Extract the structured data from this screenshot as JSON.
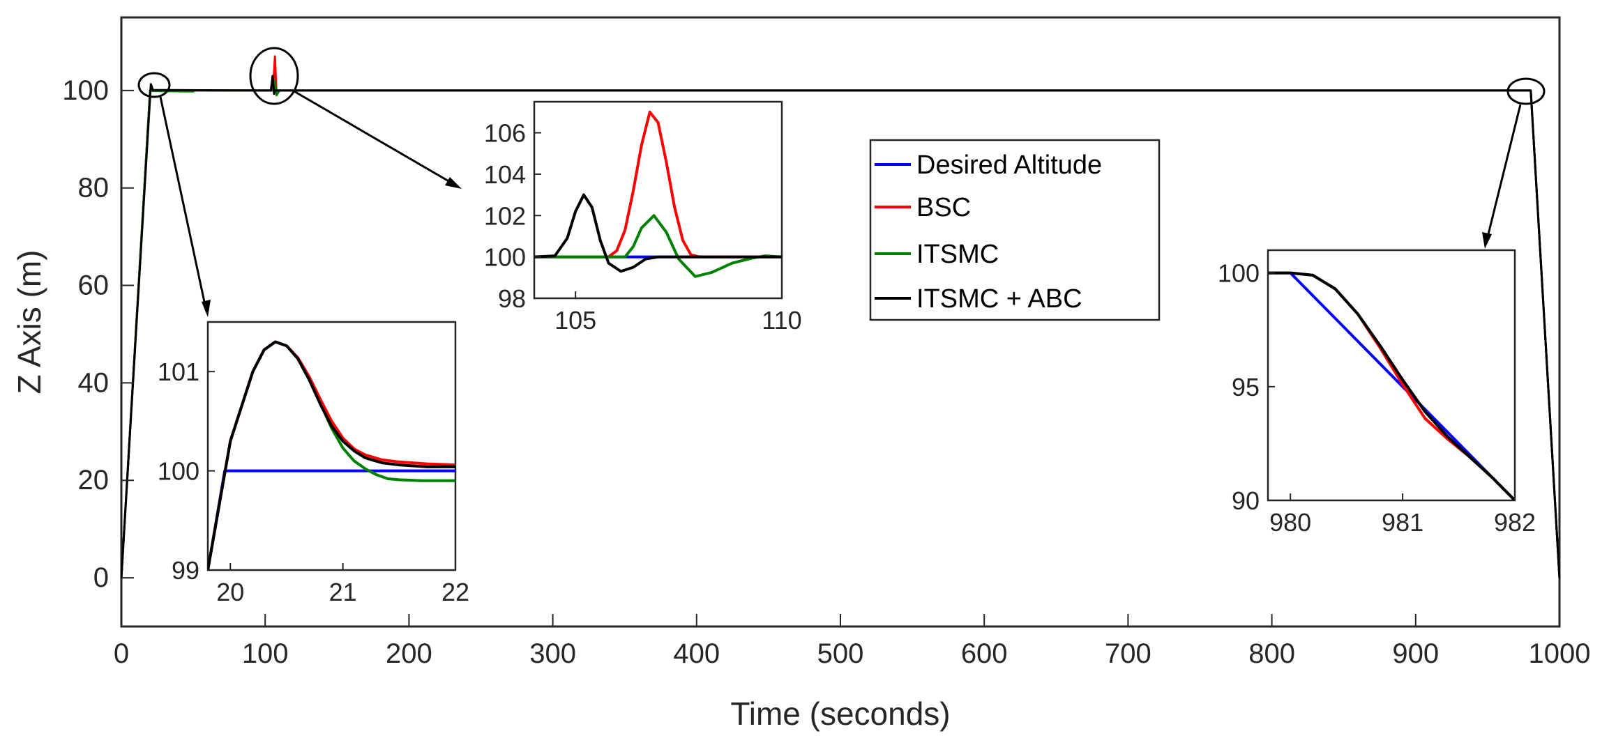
{
  "chart_data": {
    "type": "line",
    "title": "",
    "xlabel": "Time (seconds)",
    "ylabel": "Z Axis (m)",
    "xlim": [
      0,
      1000
    ],
    "ylim": [
      -10,
      115
    ],
    "xticks": [
      0,
      100,
      200,
      300,
      400,
      500,
      600,
      700,
      800,
      900,
      1000
    ],
    "yticks": [
      0,
      20,
      40,
      60,
      80,
      100
    ],
    "grid": false,
    "legend_location": "center-right inside",
    "series": [
      {
        "name": "Desired Altitude",
        "color": "#0000ff",
        "points": [
          [
            0,
            0
          ],
          [
            20,
            100
          ],
          [
            980,
            100
          ],
          [
            1000,
            0
          ]
        ]
      },
      {
        "name": "BSC",
        "color": "#ff0000",
        "points": [
          [
            0,
            0
          ],
          [
            20,
            100
          ],
          [
            22,
            100.1
          ],
          [
            104,
            100
          ],
          [
            105.5,
            100
          ],
          [
            106.8,
            107
          ],
          [
            107.8,
            100
          ],
          [
            980,
            100
          ],
          [
            1000,
            0
          ]
        ]
      },
      {
        "name": "ITSMC",
        "color": "#008000",
        "points": [
          [
            0,
            0
          ],
          [
            20,
            100
          ],
          [
            22,
            99.9
          ],
          [
            50,
            99.8
          ],
          [
            51,
            100
          ],
          [
            104,
            100
          ],
          [
            106.2,
            100
          ],
          [
            106.9,
            102
          ],
          [
            107.9,
            99
          ],
          [
            110,
            100
          ],
          [
            980,
            100
          ],
          [
            1000,
            0
          ]
        ]
      },
      {
        "name": "ITSMC + ABC",
        "color": "#000000",
        "points": [
          [
            0,
            0
          ],
          [
            20.5,
            101.3
          ],
          [
            22,
            100.1
          ],
          [
            104,
            100
          ],
          [
            105.2,
            103
          ],
          [
            106.2,
            99.3
          ],
          [
            106.8,
            100
          ],
          [
            980,
            100
          ],
          [
            1000,
            0
          ]
        ]
      }
    ],
    "insets": [
      {
        "name": "inset-zoom-20-22",
        "xlim": [
          19.8,
          22
        ],
        "ylim": [
          99,
          101.5
        ],
        "xticks": [
          20,
          21,
          22
        ],
        "yticks": [
          99,
          100,
          101
        ],
        "series": [
          {
            "name": "Desired Altitude",
            "color": "#0000ff",
            "points": [
              [
                19.8,
                99
              ],
              [
                19.95,
                100
              ],
              [
                22,
                100
              ]
            ]
          },
          {
            "name": "ITSMC",
            "color": "#008000",
            "points": [
              [
                19.8,
                99
              ],
              [
                20.0,
                100.3
              ],
              [
                20.2,
                101.0
              ],
              [
                20.3,
                101.22
              ],
              [
                20.4,
                101.3
              ],
              [
                20.5,
                101.26
              ],
              [
                20.6,
                101.13
              ],
              [
                20.7,
                100.92
              ],
              [
                20.8,
                100.68
              ],
              [
                20.9,
                100.43
              ],
              [
                21.0,
                100.23
              ],
              [
                21.1,
                100.1
              ],
              [
                21.2,
                100.02
              ],
              [
                21.3,
                99.96
              ],
              [
                21.4,
                99.92
              ],
              [
                21.5,
                99.91
              ],
              [
                21.7,
                99.9
              ],
              [
                22,
                99.9
              ]
            ]
          },
          {
            "name": "BSC",
            "color": "#ff0000",
            "points": [
              [
                19.8,
                99
              ],
              [
                20.0,
                100.3
              ],
              [
                20.2,
                101.0
              ],
              [
                20.3,
                101.22
              ],
              [
                20.4,
                101.3
              ],
              [
                20.5,
                101.26
              ],
              [
                20.6,
                101.14
              ],
              [
                20.7,
                100.95
              ],
              [
                20.8,
                100.72
              ],
              [
                20.9,
                100.5
              ],
              [
                21.0,
                100.33
              ],
              [
                21.1,
                100.22
              ],
              [
                21.2,
                100.16
              ],
              [
                21.35,
                100.11
              ],
              [
                21.5,
                100.09
              ],
              [
                21.75,
                100.07
              ],
              [
                22,
                100.06
              ]
            ]
          },
          {
            "name": "ITSMC + ABC",
            "color": "#000000",
            "points": [
              [
                19.8,
                99
              ],
              [
                20.0,
                100.3
              ],
              [
                20.2,
                101.0
              ],
              [
                20.3,
                101.22
              ],
              [
                20.4,
                101.3
              ],
              [
                20.5,
                101.26
              ],
              [
                20.6,
                101.13
              ],
              [
                20.7,
                100.92
              ],
              [
                20.8,
                100.67
              ],
              [
                20.9,
                100.45
              ],
              [
                21.0,
                100.3
              ],
              [
                21.1,
                100.2
              ],
              [
                21.2,
                100.13
              ],
              [
                21.35,
                100.08
              ],
              [
                21.5,
                100.06
              ],
              [
                21.75,
                100.04
              ],
              [
                22,
                100.04
              ]
            ]
          }
        ]
      },
      {
        "name": "inset-zoom-104-110",
        "xlim": [
          104,
          110
        ],
        "ylim": [
          98,
          107.5
        ],
        "xticks": [
          105,
          110
        ],
        "yticks": [
          98,
          100,
          102,
          104,
          106
        ],
        "series": [
          {
            "name": "Desired Altitude",
            "color": "#0000ff",
            "points": [
              [
                104,
                100
              ],
              [
                110,
                100
              ]
            ]
          },
          {
            "name": "BSC",
            "color": "#ff0000",
            "points": [
              [
                104,
                100
              ],
              [
                105.8,
                100
              ],
              [
                106,
                100.3
              ],
              [
                106.2,
                101.3
              ],
              [
                106.4,
                103.2
              ],
              [
                106.6,
                105.4
              ],
              [
                106.8,
                107
              ],
              [
                107.0,
                106.5
              ],
              [
                107.2,
                104.6
              ],
              [
                107.4,
                102.4
              ],
              [
                107.6,
                100.8
              ],
              [
                107.8,
                100.1
              ],
              [
                108,
                100
              ],
              [
                110,
                100
              ]
            ]
          },
          {
            "name": "ITSMC",
            "color": "#008000",
            "points": [
              [
                104,
                100
              ],
              [
                106.2,
                100
              ],
              [
                106.4,
                100.5
              ],
              [
                106.6,
                101.4
              ],
              [
                106.9,
                102
              ],
              [
                107.2,
                101.2
              ],
              [
                107.5,
                99.9
              ],
              [
                107.9,
                99.05
              ],
              [
                108.3,
                99.25
              ],
              [
                108.8,
                99.7
              ],
              [
                109.3,
                99.95
              ],
              [
                109.6,
                100.05
              ],
              [
                110,
                100
              ]
            ]
          },
          {
            "name": "ITSMC + ABC",
            "color": "#000000",
            "points": [
              [
                104,
                100
              ],
              [
                104.5,
                100.05
              ],
              [
                104.8,
                100.9
              ],
              [
                105.0,
                102.2
              ],
              [
                105.2,
                103
              ],
              [
                105.4,
                102.4
              ],
              [
                105.6,
                100.8
              ],
              [
                105.8,
                99.7
              ],
              [
                106.1,
                99.3
              ],
              [
                106.4,
                99.5
              ],
              [
                106.7,
                99.9
              ],
              [
                107,
                100
              ],
              [
                110,
                100
              ]
            ]
          }
        ]
      },
      {
        "name": "inset-zoom-980-982",
        "xlim": [
          979.8,
          982
        ],
        "ylim": [
          90,
          101
        ],
        "xticks": [
          980,
          981,
          982
        ],
        "yticks": [
          90,
          95,
          100
        ],
        "series": [
          {
            "name": "Desired Altitude",
            "color": "#0000ff",
            "points": [
              [
                979.8,
                100
              ],
              [
                980,
                100
              ],
              [
                982,
                90
              ]
            ]
          },
          {
            "name": "BSC",
            "color": "#ff0000",
            "points": [
              [
                979.8,
                100
              ],
              [
                980,
                100
              ],
              [
                980.2,
                99.9
              ],
              [
                980.4,
                99.3
              ],
              [
                980.6,
                98.2
              ],
              [
                980.8,
                96.7
              ],
              [
                981.0,
                95.1
              ],
              [
                981.2,
                93.6
              ],
              [
                981.4,
                92.7
              ],
              [
                981.6,
                91.9
              ],
              [
                981.8,
                91.0
              ],
              [
                982,
                90
              ]
            ]
          },
          {
            "name": "ITSMC",
            "color": "#008000",
            "points": [
              [
                979.8,
                100
              ],
              [
                980,
                100
              ],
              [
                980.2,
                99.9
              ],
              [
                980.4,
                99.3
              ],
              [
                980.6,
                98.2
              ],
              [
                980.8,
                96.8
              ],
              [
                981.0,
                95.3
              ],
              [
                981.2,
                93.9
              ],
              [
                981.4,
                92.8
              ],
              [
                981.6,
                91.9
              ],
              [
                981.8,
                91.0
              ],
              [
                982,
                90
              ]
            ]
          },
          {
            "name": "ITSMC + ABC",
            "color": "#000000",
            "points": [
              [
                979.8,
                100
              ],
              [
                980,
                100
              ],
              [
                980.2,
                99.9
              ],
              [
                980.4,
                99.3
              ],
              [
                980.6,
                98.2
              ],
              [
                980.8,
                96.8
              ],
              [
                981.0,
                95.3
              ],
              [
                981.2,
                93.9
              ],
              [
                981.4,
                92.8
              ],
              [
                981.6,
                91.9
              ],
              [
                981.8,
                91.0
              ],
              [
                982,
                90
              ]
            ]
          }
        ]
      }
    ]
  }
}
